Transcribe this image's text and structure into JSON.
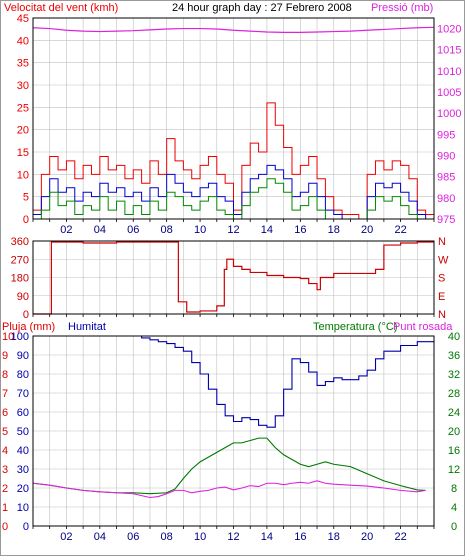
{
  "colors": {
    "wind": "#ee0000",
    "gust": "#ee0000",
    "wind_avg": "#0000cc",
    "wind_min": "#008800",
    "pressure": "#dd22dd",
    "direction": "#cc0000",
    "rain": "#dd0000",
    "humidity": "#0000aa",
    "temperature": "#007700",
    "dewpoint": "#dd22dd",
    "grid": "#c0c0c0",
    "axis": "#000000"
  },
  "chart_data": [
    {
      "type": "line",
      "panel": "wind-pressure",
      "title": "24 hour graph day : 27 Febrero 2008",
      "ylabel_left": "Velocitat del vent (kmh)",
      "ylabel_right": "Pressió (mb)",
      "x_ticks": [
        "02",
        "04",
        "06",
        "08",
        "10",
        "12",
        "14",
        "16",
        "18",
        "20",
        "22"
      ],
      "x_range": [
        0,
        24
      ],
      "ylim_left": [
        0,
        45
      ],
      "ylim_right": [
        975,
        1022.5
      ],
      "y_ticks_left": [
        "0",
        "5",
        "10",
        "15",
        "20",
        "25",
        "30",
        "35",
        "40",
        "45"
      ],
      "y_ticks_right": [
        "975",
        "980",
        "985",
        "990",
        "995",
        "1000",
        "1005",
        "1010",
        "1015",
        "1020"
      ],
      "grid": true,
      "series": [
        {
          "key": "gust",
          "hours": [
            0,
            0.5,
            1,
            1.5,
            2,
            2.5,
            3,
            3.5,
            4,
            4.5,
            5,
            5.5,
            6,
            6.5,
            7,
            7.5,
            8,
            8.5,
            9,
            9.5,
            10,
            10.5,
            11,
            11.5,
            12,
            12.5,
            13,
            13.5,
            14,
            14.5,
            15,
            15.5,
            16,
            16.5,
            17,
            17.5,
            18,
            18.5,
            19,
            19.5,
            20,
            20.5,
            21,
            21.5,
            22,
            22.5,
            23,
            23.5
          ],
          "values": [
            2,
            10,
            14,
            11,
            13,
            9,
            12,
            10,
            14,
            11,
            12,
            9,
            11,
            8,
            13,
            10,
            18,
            13,
            11,
            9,
            12,
            14,
            10,
            8,
            2,
            12,
            17,
            15,
            26,
            21,
            16,
            10,
            12,
            14,
            9,
            5,
            2,
            1,
            1,
            0,
            10,
            13,
            11,
            13,
            12,
            9,
            2,
            1
          ]
        },
        {
          "key": "wind_avg",
          "hours": [
            0,
            0.5,
            1,
            1.5,
            2,
            2.5,
            3,
            3.5,
            4,
            4.5,
            5,
            5.5,
            6,
            6.5,
            7,
            7.5,
            8,
            8.5,
            9,
            9.5,
            10,
            10.5,
            11,
            11.5,
            12,
            12.5,
            13,
            13.5,
            14,
            14.5,
            15,
            15.5,
            16,
            16.5,
            17,
            17.5,
            18,
            18.5,
            19,
            19.5,
            20,
            20.5,
            21,
            21.5,
            22,
            22.5,
            23,
            23.5
          ],
          "values": [
            1,
            5,
            9,
            6,
            7,
            4,
            6,
            5,
            8,
            6,
            7,
            5,
            6,
            4,
            7,
            5,
            10,
            8,
            6,
            5,
            7,
            8,
            5,
            4,
            1,
            6,
            9,
            10,
            12,
            11,
            9,
            5,
            6,
            8,
            5,
            2,
            1,
            0,
            0,
            0,
            5,
            8,
            7,
            8,
            6,
            4,
            1,
            0
          ]
        },
        {
          "key": "wind_min",
          "hours": [
            0,
            0.5,
            1,
            1.5,
            2,
            2.5,
            3,
            3.5,
            4,
            4.5,
            5,
            5.5,
            6,
            6.5,
            7,
            7.5,
            8,
            8.5,
            9,
            9.5,
            10,
            10.5,
            11,
            11.5,
            12,
            12.5,
            13,
            13.5,
            14,
            14.5,
            15,
            15.5,
            16,
            16.5,
            17,
            17.5,
            18,
            18.5,
            19,
            19.5,
            20,
            20.5,
            21,
            21.5,
            22,
            22.5,
            23,
            23.5
          ],
          "values": [
            0,
            2,
            6,
            3,
            4,
            1,
            3,
            2,
            5,
            2,
            4,
            1,
            3,
            1,
            4,
            2,
            6,
            5,
            3,
            2,
            4,
            5,
            2,
            1,
            0,
            3,
            6,
            7,
            9,
            8,
            6,
            2,
            3,
            5,
            2,
            0,
            0,
            0,
            0,
            0,
            2,
            5,
            4,
            5,
            3,
            1,
            0,
            0
          ]
        },
        {
          "key": "pressure",
          "axis": "right",
          "hours": [
            0,
            1,
            2,
            3,
            4,
            5,
            6,
            7,
            8,
            9,
            10,
            11,
            12,
            13,
            14,
            15,
            16,
            17,
            18,
            19,
            20,
            21,
            22,
            23,
            24
          ],
          "values": [
            1020.2,
            1020.0,
            1019.6,
            1019.4,
            1019.3,
            1019.4,
            1019.5,
            1019.7,
            1019.9,
            1020.0,
            1020.0,
            1019.9,
            1019.6,
            1019.4,
            1019.2,
            1019.1,
            1019.1,
            1019.2,
            1019.3,
            1019.4,
            1019.6,
            1019.8,
            1020.0,
            1020.2,
            1020.3
          ]
        }
      ]
    },
    {
      "type": "line",
      "panel": "direction",
      "x_range": [
        0,
        24
      ],
      "ylim": [
        0,
        360
      ],
      "y_ticks_left": [
        "0",
        "90",
        "180",
        "270",
        "360"
      ],
      "y_ticks_right": [
        "N",
        "E",
        "S",
        "W",
        "N"
      ],
      "grid": true,
      "series": [
        {
          "key": "direction",
          "hours": [
            0,
            0.6,
            0.95,
            1.1,
            3,
            5,
            7,
            8.3,
            8.7,
            9.2,
            10,
            11,
            11.35,
            11.45,
            11.6,
            12,
            12.5,
            13,
            14,
            15,
            16,
            16.5,
            17,
            17.2,
            18,
            19,
            20,
            20.5,
            21,
            22,
            23,
            23.5
          ],
          "values": [
            0,
            0,
            0,
            355,
            350,
            355,
            355,
            355,
            60,
            10,
            15,
            40,
            40,
            220,
            270,
            235,
            220,
            205,
            190,
            180,
            175,
            150,
            120,
            180,
            200,
            200,
            200,
            220,
            340,
            350,
            355,
            355
          ]
        }
      ]
    },
    {
      "type": "line",
      "panel": "rain-humidity-temperature",
      "series_labels": {
        "rain": "Pluja (mm)",
        "humidity": "Humitat",
        "temperature": "Temperatura (°C)",
        "dewpoint": "Punt rosada"
      },
      "x_ticks": [
        "02",
        "04",
        "06",
        "08",
        "10",
        "12",
        "14",
        "16",
        "18",
        "20",
        "22"
      ],
      "x_range": [
        0,
        24
      ],
      "ylim_left": [
        0,
        10
      ],
      "ylim_mid": [
        0,
        100
      ],
      "ylim_right": [
        0,
        40
      ],
      "y_ticks_left": [
        "0",
        "1",
        "2",
        "3",
        "4",
        "5",
        "6",
        "7",
        "8",
        "9",
        "10"
      ],
      "y_ticks_mid": [
        "0",
        "10",
        "20",
        "30",
        "40",
        "50",
        "60",
        "70",
        "80",
        "90",
        "100"
      ],
      "y_ticks_right": [
        "0",
        "4",
        "8",
        "12",
        "16",
        "20",
        "24",
        "28",
        "32",
        "36",
        "40"
      ],
      "grid": true,
      "series": [
        {
          "key": "rain",
          "axis": "left",
          "hours": [
            0,
            24
          ],
          "values": [
            0,
            0
          ]
        },
        {
          "key": "humidity",
          "axis": "mid",
          "hours": [
            0,
            1,
            2,
            3,
            4,
            5,
            6,
            6.5,
            7,
            7.5,
            8,
            8.5,
            9,
            9.5,
            10,
            10.5,
            11,
            11.5,
            12,
            12.5,
            13,
            13.5,
            14,
            14.5,
            15,
            15.5,
            16,
            16.5,
            17,
            17.5,
            18,
            18.5,
            19,
            19.5,
            20,
            20.5,
            21,
            22,
            23,
            23.5
          ],
          "values": [
            100,
            100,
            100,
            100,
            100,
            100,
            100,
            99,
            98,
            97,
            96,
            94,
            92,
            86,
            80,
            72,
            64,
            58,
            55,
            57,
            56,
            53,
            52,
            58,
            72,
            88,
            86,
            81,
            74,
            76,
            78,
            77,
            77,
            79,
            82,
            88,
            92,
            95,
            97,
            97
          ]
        },
        {
          "key": "temperature",
          "axis": "right",
          "hours": [
            0,
            1,
            2,
            3,
            4,
            5,
            6,
            7,
            8,
            8.5,
            9,
            9.5,
            10,
            10.5,
            11,
            11.5,
            12,
            12.5,
            13,
            13.5,
            14,
            14.5,
            15,
            15.5,
            16,
            16.5,
            17,
            17.5,
            18,
            19,
            20,
            21,
            22,
            23,
            23.5
          ],
          "values": [
            9,
            8.6,
            8,
            7.5,
            7.2,
            7,
            7,
            6.8,
            7,
            7.8,
            10,
            12,
            13.5,
            14.5,
            15.5,
            16.5,
            17.5,
            17.5,
            18,
            18.5,
            18.5,
            16.5,
            15,
            14,
            13,
            12.5,
            13,
            13.5,
            13,
            12.5,
            11,
            9.5,
            8.5,
            7.6,
            7.5
          ]
        },
        {
          "key": "dewpoint",
          "axis": "right",
          "hours": [
            0,
            1,
            2,
            3,
            4,
            5,
            6,
            6.5,
            7,
            7.5,
            8,
            8.5,
            9,
            9.5,
            10,
            10.5,
            11,
            11.5,
            12,
            12.5,
            13,
            13.5,
            14,
            14.5,
            15,
            15.5,
            16,
            16.5,
            17,
            17.5,
            18,
            19,
            20,
            21,
            22,
            23,
            23.5
          ],
          "values": [
            9,
            8.6,
            8,
            7.5,
            7.2,
            7,
            6.8,
            6.4,
            6,
            6.2,
            6.8,
            7.5,
            7.5,
            7,
            7.3,
            7.5,
            8,
            8.2,
            7.6,
            8,
            8.5,
            8.3,
            9,
            9,
            8.7,
            9,
            9.2,
            9,
            9.5,
            9,
            8.8,
            8.6,
            8.4,
            8,
            7.5,
            7.2,
            7.5
          ]
        }
      ]
    }
  ]
}
